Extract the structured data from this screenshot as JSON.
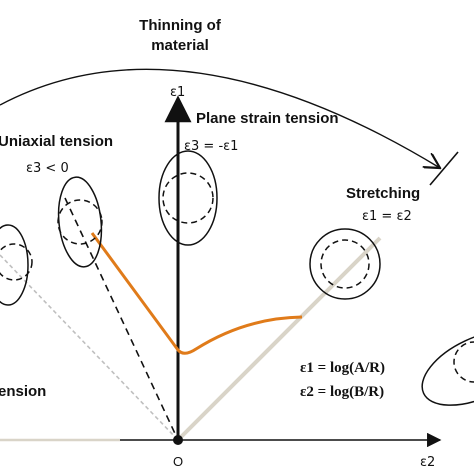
{
  "labels": {
    "thinning_line1": "Thinning of",
    "thinning_line2": "material",
    "uniaxial": "Uniaxial tension",
    "uniaxial_cond": "ε3 < 0",
    "plane_strain": "Plane strain tension",
    "plane_strain_cond": "ε3 = -ε1",
    "stretching": "Stretching",
    "stretching_cond": "ε1 = ε2",
    "compression_partial": "ension",
    "eps1_axis": "ε1",
    "eps2_axis": "ε2",
    "origin": "O",
    "formula1": "ε1 = log(A/R)",
    "formula2": "ε2 = log(B/R)"
  },
  "colors": {
    "forming_limit_curve": "#e07b1a",
    "equibiaxial_path": "#d9d4c8",
    "guide_gray": "#bfbfbf",
    "ink": "#111111"
  }
}
